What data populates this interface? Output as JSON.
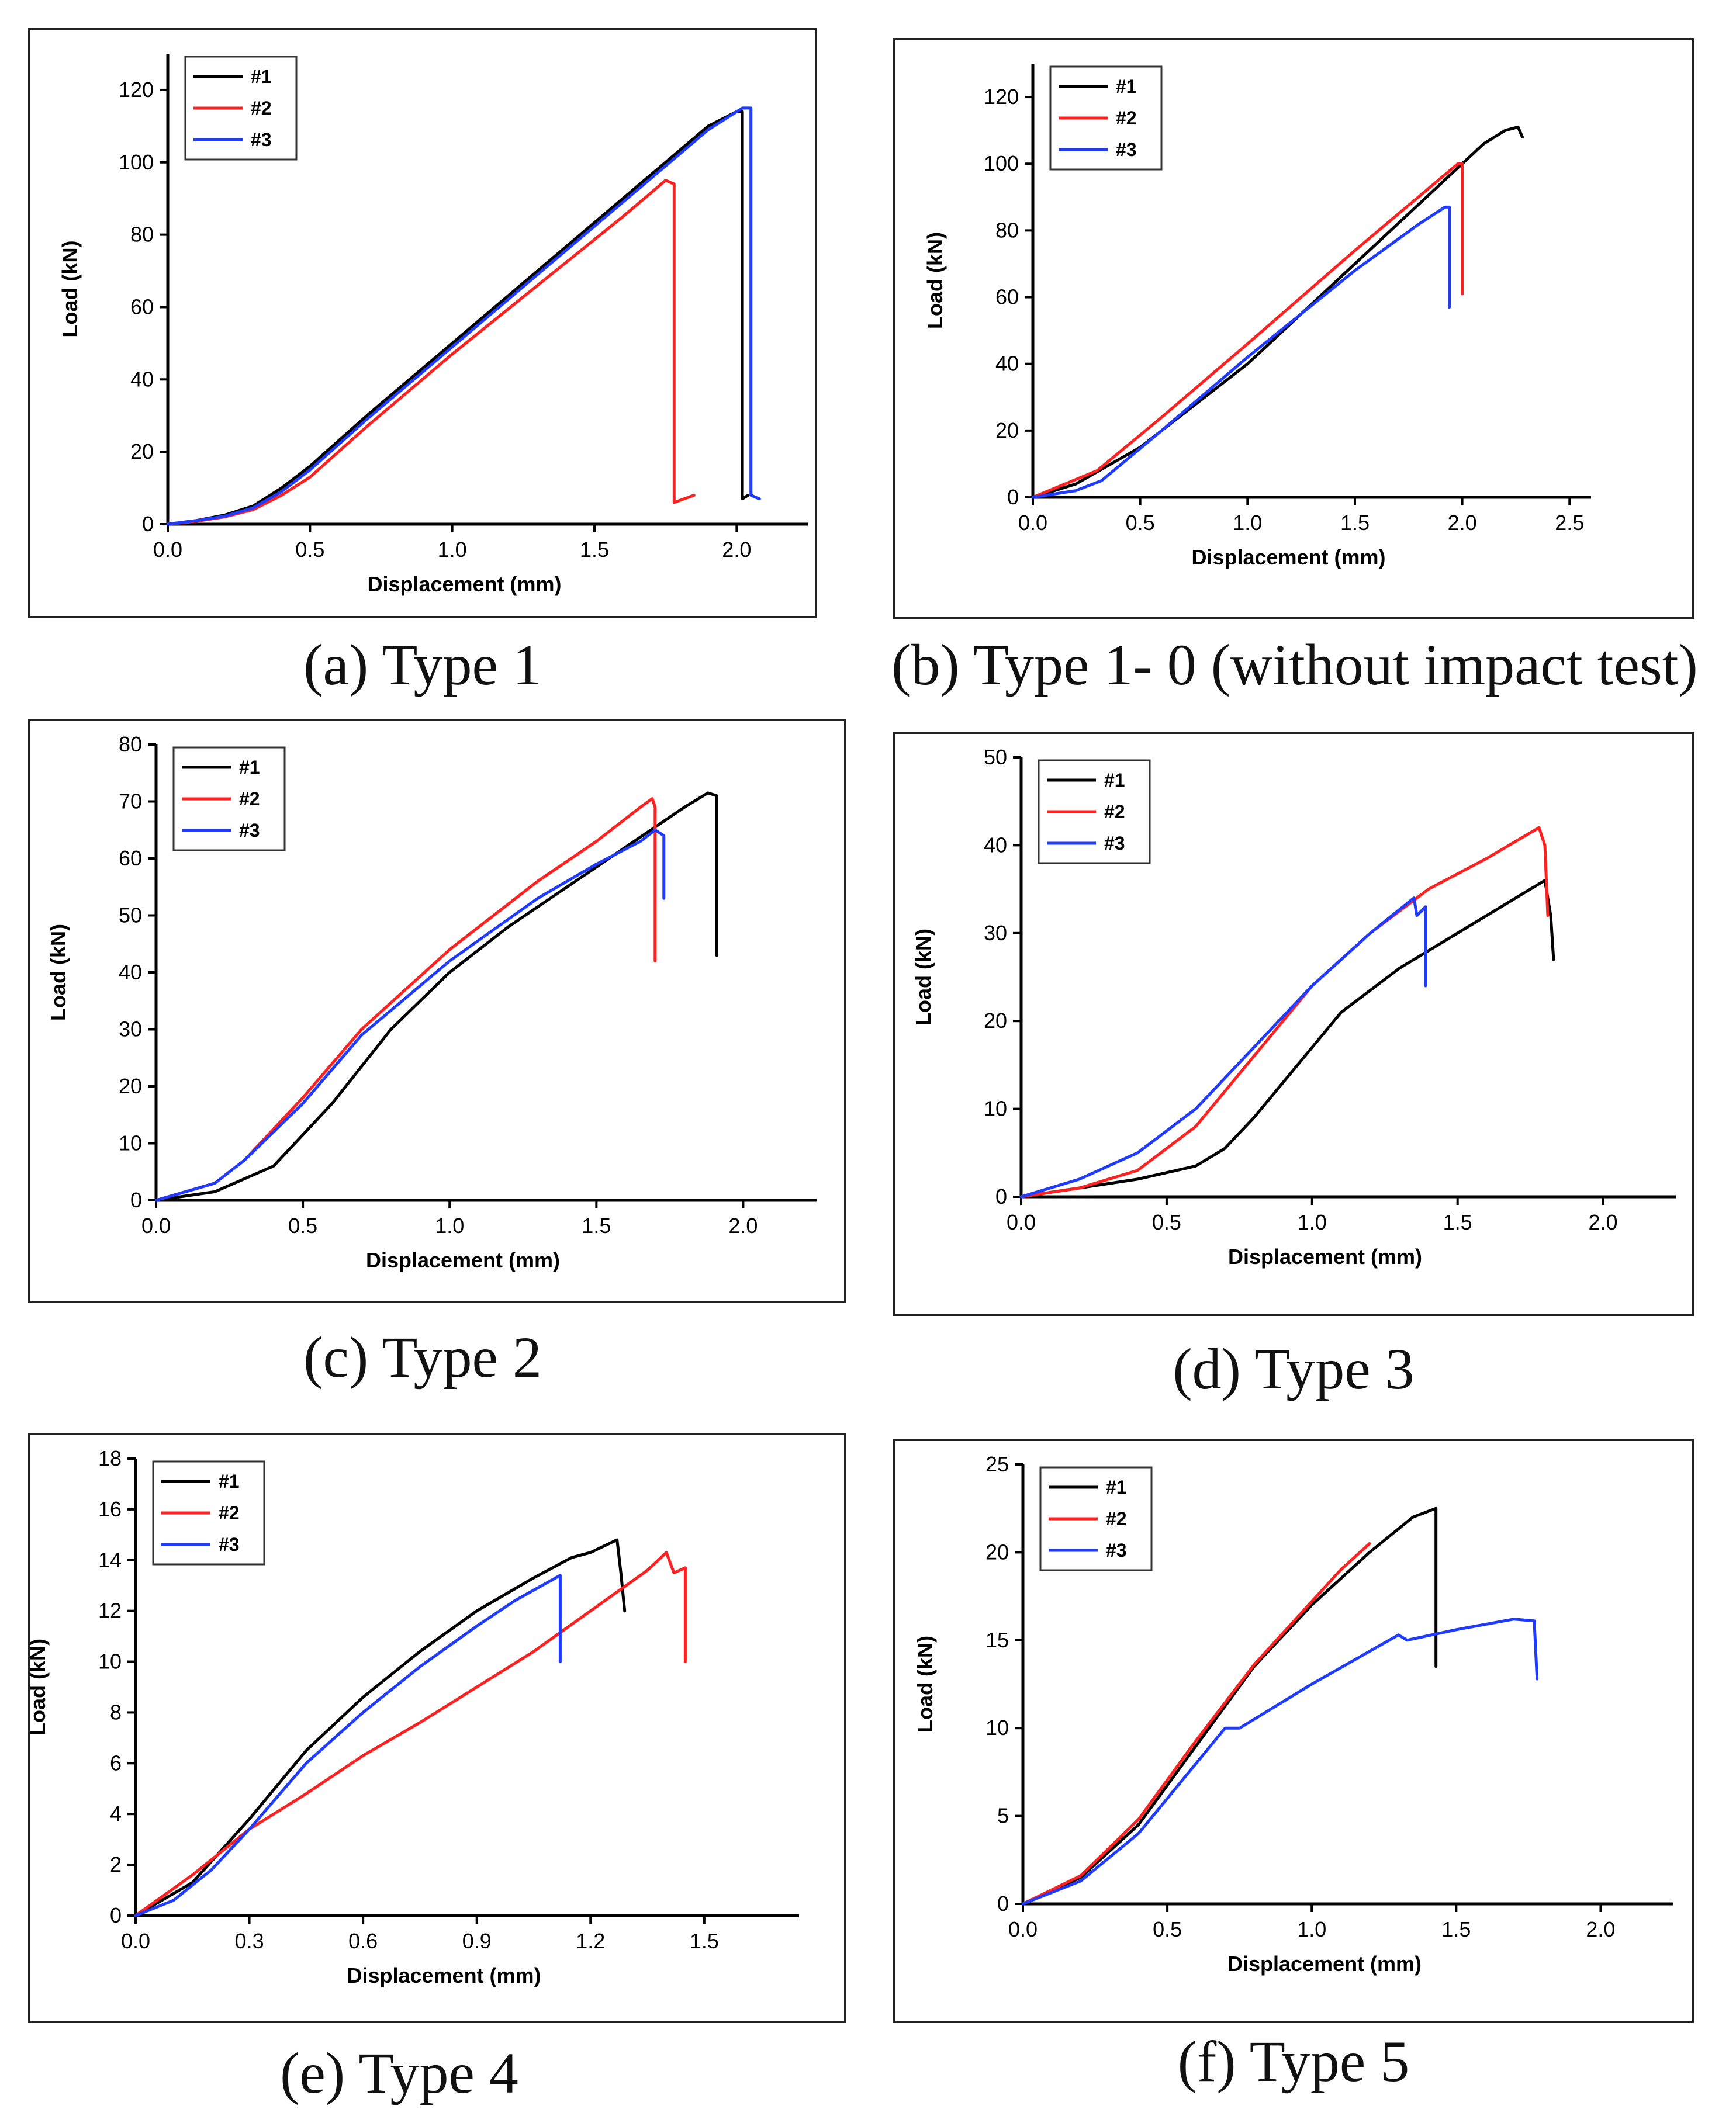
{
  "colors": {
    "s1": "#000000",
    "s2": "#ff2020",
    "s3": "#1f3bff"
  },
  "chart_data": [
    {
      "type": "line",
      "caption": "(a) Type 1",
      "xlabel": "Displacement (mm)",
      "ylabel": "Load (kN)",
      "xlim": [
        0,
        2.25
      ],
      "ylim": [
        0,
        130
      ],
      "xticks": [
        0,
        0.5,
        1.0,
        1.5,
        2.0
      ],
      "xtick_labels": [
        "0.0",
        "0.5",
        "1.0",
        "1.5",
        "2.0"
      ],
      "yticks": [
        0,
        20,
        40,
        60,
        80,
        100,
        120
      ],
      "ytick_labels": [
        "0",
        "20",
        "40",
        "60",
        "80",
        "100",
        "120"
      ],
      "legend": [
        "#1",
        "#2",
        "#3"
      ],
      "series": [
        {
          "name": "#1",
          "x": [
            0,
            0.1,
            0.2,
            0.3,
            0.4,
            0.5,
            0.7,
            1.0,
            1.3,
            1.6,
            1.9,
            2.0,
            2.02,
            2.02,
            2.04
          ],
          "y": [
            0,
            1,
            2.5,
            5,
            10,
            16,
            30,
            50,
            70,
            90,
            110,
            114,
            114,
            7,
            8
          ]
        },
        {
          "name": "#2",
          "x": [
            0,
            0.1,
            0.2,
            0.3,
            0.4,
            0.5,
            0.7,
            1.0,
            1.3,
            1.6,
            1.75,
            1.78,
            1.78,
            1.85
          ],
          "y": [
            0,
            0.8,
            2,
            4,
            8,
            13,
            27,
            47,
            66,
            85,
            95,
            94,
            6,
            8
          ]
        },
        {
          "name": "#3",
          "x": [
            0,
            0.1,
            0.2,
            0.3,
            0.4,
            0.5,
            0.7,
            1.0,
            1.3,
            1.6,
            1.9,
            2.02,
            2.05,
            2.05,
            2.08
          ],
          "y": [
            0,
            1,
            2.2,
            4.5,
            9,
            15,
            29,
            49,
            69,
            89,
            109,
            115,
            115,
            8,
            7
          ]
        }
      ]
    },
    {
      "type": "line",
      "caption": "(b) Type 1- 0 (without impact test)",
      "xlabel": "Displacement (mm)",
      "ylabel": "Load (kN)",
      "xlim": [
        0,
        2.6
      ],
      "ylim": [
        0,
        130
      ],
      "xticks": [
        0,
        0.5,
        1.0,
        1.5,
        2.0,
        2.5
      ],
      "xtick_labels": [
        "0.0",
        "0.5",
        "1.0",
        "1.5",
        "2.0",
        "2.5"
      ],
      "yticks": [
        0,
        20,
        40,
        60,
        80,
        100,
        120
      ],
      "ytick_labels": [
        "0",
        "20",
        "40",
        "60",
        "80",
        "100",
        "120"
      ],
      "legend": [
        "#1",
        "#2",
        "#3"
      ],
      "series": [
        {
          "name": "#1",
          "x": [
            0,
            0.2,
            0.5,
            1.0,
            1.5,
            2.0,
            2.1,
            2.2,
            2.26,
            2.28
          ],
          "y": [
            0,
            4,
            15,
            40,
            70,
            100,
            106,
            110,
            111,
            108
          ]
        },
        {
          "name": "#2",
          "x": [
            0,
            0.3,
            0.6,
            1.0,
            1.5,
            1.98,
            2.0,
            2.0
          ],
          "y": [
            0,
            8,
            24,
            46,
            74,
            100,
            100,
            61
          ]
        },
        {
          "name": "#3",
          "x": [
            0,
            0.2,
            0.32,
            0.6,
            1.0,
            1.5,
            1.8,
            1.92,
            1.94,
            1.94
          ],
          "y": [
            0,
            2,
            5,
            20,
            42,
            68,
            82,
            87,
            87,
            57
          ]
        }
      ]
    },
    {
      "type": "line",
      "caption": "(c) Type 2",
      "xlabel": "Displacement (mm)",
      "ylabel": "Load (kN)",
      "xlim": [
        0,
        2.25
      ],
      "ylim": [
        0,
        80
      ],
      "xticks": [
        0,
        0.5,
        1.0,
        1.5,
        2.0
      ],
      "xtick_labels": [
        "0.0",
        "0.5",
        "1.0",
        "1.5",
        "2.0"
      ],
      "yticks": [
        0,
        10,
        20,
        30,
        40,
        50,
        60,
        70,
        80
      ],
      "ytick_labels": [
        "0",
        "10",
        "20",
        "30",
        "40",
        "50",
        "60",
        "70",
        "80"
      ],
      "legend": [
        "#1",
        "#2",
        "#3"
      ],
      "series": [
        {
          "name": "#1",
          "x": [
            0,
            0.2,
            0.4,
            0.6,
            0.8,
            1.0,
            1.2,
            1.4,
            1.6,
            1.8,
            1.88,
            1.91,
            1.91
          ],
          "y": [
            0,
            1.5,
            6,
            17,
            30,
            40,
            48,
            55,
            62,
            69,
            71.5,
            71,
            43
          ]
        },
        {
          "name": "#2",
          "x": [
            0,
            0.2,
            0.3,
            0.5,
            0.7,
            1.0,
            1.3,
            1.5,
            1.65,
            1.69,
            1.7,
            1.7
          ],
          "y": [
            0,
            3,
            7,
            18,
            30,
            44,
            56,
            63,
            69,
            70.5,
            69,
            42
          ]
        },
        {
          "name": "#3",
          "x": [
            0,
            0.2,
            0.3,
            0.5,
            0.7,
            1.0,
            1.3,
            1.5,
            1.65,
            1.7,
            1.73,
            1.73
          ],
          "y": [
            0,
            3,
            7,
            17,
            29,
            42,
            53,
            59,
            63,
            65,
            64,
            53
          ]
        }
      ]
    },
    {
      "type": "line",
      "caption": "(d) Type 3",
      "xlabel": "Displacement (mm)",
      "ylabel": "Load (kN)",
      "xlim": [
        0,
        2.25
      ],
      "ylim": [
        0,
        50
      ],
      "xticks": [
        0,
        0.5,
        1.0,
        1.5,
        2.0
      ],
      "xtick_labels": [
        "0.0",
        "0.5",
        "1.0",
        "1.5",
        "2.0"
      ],
      "yticks": [
        0,
        10,
        20,
        30,
        40,
        50
      ],
      "ytick_labels": [
        "0",
        "10",
        "20",
        "30",
        "40",
        "50"
      ],
      "legend": [
        "#1",
        "#2",
        "#3"
      ],
      "series": [
        {
          "name": "#1",
          "x": [
            0,
            0.2,
            0.4,
            0.6,
            0.7,
            0.8,
            0.9,
            1.0,
            1.1,
            1.3,
            1.5,
            1.7,
            1.8,
            1.82,
            1.83
          ],
          "y": [
            0,
            1,
            2,
            3.5,
            5.5,
            9,
            13,
            17,
            21,
            26,
            30,
            34,
            36,
            32,
            27
          ]
        },
        {
          "name": "#2",
          "x": [
            0,
            0.2,
            0.4,
            0.6,
            0.8,
            1.0,
            1.2,
            1.4,
            1.6,
            1.78,
            1.8,
            1.8,
            1.81
          ],
          "y": [
            0,
            1,
            3,
            8,
            16,
            24,
            30,
            35,
            38.5,
            42,
            40,
            40,
            32
          ]
        },
        {
          "name": "#3",
          "x": [
            0,
            0.2,
            0.4,
            0.6,
            0.8,
            1.0,
            1.2,
            1.35,
            1.36,
            1.39,
            1.39
          ],
          "y": [
            0,
            2,
            5,
            10,
            17,
            24,
            30,
            34,
            32,
            33,
            24
          ]
        }
      ]
    },
    {
      "type": "line",
      "caption": "(e) Type 4",
      "xlabel": "Displacement (mm)",
      "ylabel": "Load (kN)",
      "xlim": [
        0,
        1.75
      ],
      "ylim": [
        0,
        18
      ],
      "xticks": [
        0,
        0.3,
        0.6,
        0.9,
        1.2,
        1.5
      ],
      "xtick_labels": [
        "0.0",
        "0.3",
        "0.6",
        "0.9",
        "1.2",
        "1.5"
      ],
      "yticks": [
        0,
        2,
        4,
        6,
        8,
        10,
        12,
        14,
        16,
        18
      ],
      "ytick_labels": [
        "0",
        "2",
        "4",
        "6",
        "8",
        "10",
        "12",
        "14",
        "16",
        "18"
      ],
      "legend": [
        "#1",
        "#2",
        "#3"
      ],
      "series": [
        {
          "name": "#1",
          "x": [
            0,
            0.15,
            0.3,
            0.45,
            0.6,
            0.75,
            0.9,
            1.05,
            1.15,
            1.2,
            1.27,
            1.28,
            1.29
          ],
          "y": [
            0,
            1.3,
            3.8,
            6.5,
            8.6,
            10.4,
            12,
            13.3,
            14.1,
            14.3,
            14.8,
            13.5,
            12
          ]
        },
        {
          "name": "#2",
          "x": [
            0,
            0.15,
            0.3,
            0.45,
            0.6,
            0.75,
            0.9,
            1.05,
            1.2,
            1.35,
            1.4,
            1.42,
            1.45,
            1.45
          ],
          "y": [
            0,
            1.6,
            3.4,
            4.8,
            6.3,
            7.6,
            9,
            10.4,
            12,
            13.6,
            14.3,
            13.5,
            13.7,
            10
          ]
        },
        {
          "name": "#3",
          "x": [
            0,
            0.1,
            0.2,
            0.3,
            0.45,
            0.6,
            0.75,
            0.9,
            1.0,
            1.12,
            1.12
          ],
          "y": [
            0,
            0.6,
            1.8,
            3.4,
            6,
            8,
            9.8,
            11.4,
            12.4,
            13.4,
            10
          ]
        }
      ]
    },
    {
      "type": "line",
      "caption": "(f) Type 5",
      "xlabel": "Displacement (mm)",
      "ylabel": "Load (kN)",
      "xlim": [
        0,
        2.25
      ],
      "ylim": [
        0,
        25
      ],
      "xticks": [
        0,
        0.5,
        1.0,
        1.5,
        2.0
      ],
      "xtick_labels": [
        "0.0",
        "0.5",
        "1.0",
        "1.5",
        "2.0"
      ],
      "yticks": [
        0,
        5,
        10,
        15,
        20,
        25
      ],
      "ytick_labels": [
        "0",
        "5",
        "10",
        "15",
        "20",
        "25"
      ],
      "legend": [
        "#1",
        "#2",
        "#3"
      ],
      "series": [
        {
          "name": "#1",
          "x": [
            0,
            0.2,
            0.4,
            0.6,
            0.8,
            1.0,
            1.2,
            1.35,
            1.43,
            1.43
          ],
          "y": [
            0,
            1.5,
            4.5,
            9,
            13.5,
            17,
            20,
            22,
            22.5,
            13.5
          ]
        },
        {
          "name": "#2",
          "x": [
            0,
            0.2,
            0.4,
            0.6,
            0.8,
            1.0,
            1.1,
            1.2
          ],
          "y": [
            0,
            1.6,
            4.8,
            9.3,
            13.6,
            17.2,
            19,
            20.5
          ]
        },
        {
          "name": "#3",
          "x": [
            0,
            0.2,
            0.4,
            0.6,
            0.7,
            0.75,
            0.8,
            1.0,
            1.3,
            1.33,
            1.5,
            1.7,
            1.77,
            1.78
          ],
          "y": [
            0,
            1.3,
            4,
            8,
            10,
            10,
            10.5,
            12.5,
            15.3,
            15,
            15.6,
            16.2,
            16.1,
            12.8
          ]
        }
      ]
    }
  ]
}
